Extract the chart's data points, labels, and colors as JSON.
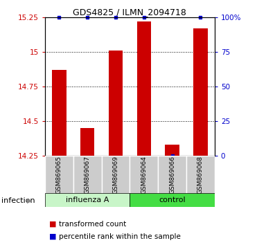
{
  "title": "GDS4825 / ILMN_2094718",
  "samples": [
    "GSM869065",
    "GSM869067",
    "GSM869069",
    "GSM869064",
    "GSM869066",
    "GSM869068"
  ],
  "transformed_counts": [
    14.87,
    14.45,
    15.01,
    15.22,
    14.33,
    15.17
  ],
  "percentile_ranks": [
    100,
    100,
    100,
    100,
    0,
    100
  ],
  "ylim": [
    14.25,
    15.25
  ],
  "yticks": [
    14.25,
    14.5,
    14.75,
    15.0,
    15.25
  ],
  "ytick_labels": [
    "14.25",
    "14.5",
    "14.75",
    "15",
    "15.25"
  ],
  "right_yticks": [
    0,
    25,
    50,
    75,
    100
  ],
  "right_ytick_labels": [
    "0",
    "25",
    "50",
    "75",
    "100%"
  ],
  "bar_color": "#CC0000",
  "dot_color": "#0000CC",
  "group_influenza_color": "#c8f5c8",
  "group_control_color": "#44dd44",
  "legend_label_count": "transformed count",
  "legend_label_pct": "percentile rank within the sample"
}
